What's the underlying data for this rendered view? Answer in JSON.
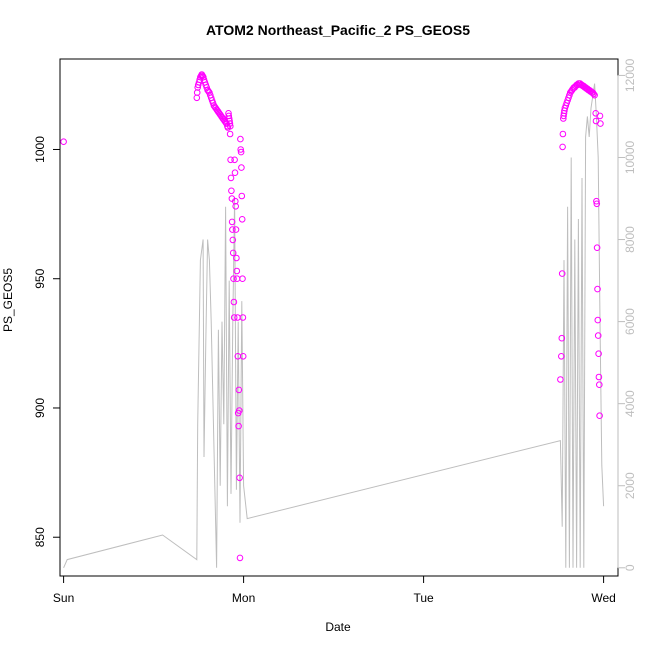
{
  "chart_data": {
    "type": "scatter",
    "title": "ATOM2 Northeast_Pacific_2 PS_GEOS5",
    "xlabel": "Date",
    "ylabel": "PS_GEOS5",
    "x_ticks": [
      "Sun",
      "Mon",
      "Tue",
      "Wed"
    ],
    "xlim_days": [
      -0.02,
      3.08
    ],
    "ylim": [
      835,
      1035
    ],
    "y_ticks": [
      850,
      900,
      950,
      1000
    ],
    "y2lim": [
      -200,
      12400
    ],
    "y2_ticks": [
      0,
      2000,
      4000,
      6000,
      8000,
      10000,
      12000
    ],
    "colors": {
      "points": "#ff00ff",
      "line": "#bebebe",
      "axis": "#000000",
      "axis_right": "#bebebe"
    },
    "series": [
      {
        "kind": "points",
        "axis": "left",
        "x_days": [
          0.0,
          0.74,
          0.742,
          0.745,
          0.748,
          0.752,
          0.756,
          0.76,
          0.764,
          0.768,
          0.772,
          0.776,
          0.78,
          0.785,
          0.79,
          0.795,
          0.8,
          0.805,
          0.81,
          0.815,
          0.82,
          0.825,
          0.83,
          0.835,
          0.84,
          0.845,
          0.85,
          0.855,
          0.86,
          0.865,
          0.87,
          0.875,
          0.88,
          0.885,
          0.89,
          0.895,
          0.9,
          0.905,
          0.91,
          0.913,
          0.916,
          0.918,
          0.92,
          0.922,
          0.924,
          0.926,
          0.925,
          0.928,
          0.93,
          0.932,
          0.935,
          0.936,
          0.938,
          0.94,
          0.942,
          0.944,
          0.946,
          0.948,
          0.95,
          0.952,
          0.954,
          0.956,
          0.958,
          0.96,
          0.962,
          0.964,
          0.966,
          0.968,
          0.97,
          0.972,
          0.974,
          0.976,
          0.978,
          0.98,
          0.982,
          0.984,
          0.986,
          0.988,
          0.99,
          0.992,
          0.994,
          0.996,
          0.998,
          2.76,
          2.765,
          2.768,
          2.77,
          2.772,
          2.774,
          2.776,
          2.778,
          2.78,
          2.782,
          2.785,
          2.79,
          2.795,
          2.8,
          2.805,
          2.81,
          2.815,
          2.82,
          2.825,
          2.83,
          2.835,
          2.84,
          2.845,
          2.85,
          2.855,
          2.86,
          2.865,
          2.87,
          2.875,
          2.88,
          2.885,
          2.89,
          2.895,
          2.9,
          2.905,
          2.91,
          2.915,
          2.92,
          2.925,
          2.93,
          2.935,
          2.94,
          2.945,
          2.95,
          2.956,
          2.958,
          2.96,
          2.962,
          2.964,
          2.966,
          2.968,
          2.97,
          2.972,
          2.974,
          2.976,
          2.978,
          2.98,
          2.982
        ],
        "values": [
          1003,
          1020,
          1022,
          1024,
          1025,
          1026,
          1027,
          1028,
          1028.5,
          1029,
          1028.5,
          1028,
          1027,
          1026,
          1025,
          1024,
          1023,
          1022.5,
          1022,
          1021,
          1020,
          1019,
          1018,
          1017,
          1016.5,
          1016,
          1015.5,
          1015,
          1014.5,
          1014,
          1013.5,
          1013,
          1012.5,
          1012,
          1011.5,
          1011,
          1010.5,
          1010,
          1009,
          1008.5,
          1014,
          1013,
          1012,
          1011,
          1010,
          1009,
          1006,
          996,
          989,
          984,
          981,
          972,
          969,
          965,
          960,
          950,
          941,
          935,
          996,
          991,
          980,
          978,
          969,
          958,
          953,
          950,
          935,
          920,
          898,
          893,
          907,
          899,
          873,
          842,
          1004,
          1000,
          999,
          993,
          982,
          973,
          950,
          935,
          920,
          911,
          920,
          927,
          952,
          1001,
          1006,
          1012,
          1013,
          1014,
          1015,
          1016,
          1017,
          1018,
          1019,
          1020,
          1021,
          1022,
          1022.5,
          1023,
          1023.5,
          1024,
          1024,
          1024.5,
          1025,
          1025,
          1025.5,
          1025.5,
          1025.5,
          1025,
          1025,
          1024.5,
          1024.5,
          1024,
          1024,
          1023.5,
          1023.5,
          1023,
          1023,
          1022.5,
          1022.5,
          1022,
          1022,
          1021.5,
          1021,
          1014,
          1011,
          980,
          979,
          962,
          946,
          934,
          928,
          921,
          912,
          909,
          897,
          1013,
          1010
        ]
      },
      {
        "kind": "line",
        "axis": "right",
        "x_days": [
          0.0,
          0.02,
          0.55,
          0.74,
          0.745,
          0.76,
          0.775,
          0.78,
          0.79,
          0.8,
          0.81,
          0.82,
          0.83,
          0.84,
          0.85,
          0.86,
          0.87,
          0.88,
          0.89,
          0.9,
          0.91,
          0.92,
          0.93,
          0.94,
          0.95,
          0.96,
          0.97,
          0.98,
          0.99,
          1.0,
          1.02,
          2.76,
          2.77,
          2.78,
          2.79,
          2.8,
          2.81,
          2.82,
          2.83,
          2.84,
          2.85,
          2.86,
          2.87,
          2.88,
          2.89,
          2.9,
          2.91,
          2.92,
          2.93,
          2.94,
          2.95,
          2.96,
          2.97,
          2.98,
          2.99,
          3.0
        ],
        "values": [
          0,
          200,
          800,
          200,
          3500,
          7500,
          8000,
          2700,
          5500,
          8000,
          7500,
          6000,
          4000,
          2000,
          0,
          5800,
          2000,
          6000,
          3500,
          8800,
          1500,
          7000,
          1800,
          6000,
          9000,
          1900,
          6000,
          1100,
          6500,
          2000,
          1200,
          3100,
          1000,
          7500,
          0,
          8800,
          0,
          10000,
          0,
          8000,
          0,
          8500,
          0,
          9500,
          0,
          10500,
          11000,
          10500,
          11200,
          11500,
          11800,
          11000,
          10000,
          6000,
          2500,
          1500
        ]
      }
    ]
  }
}
